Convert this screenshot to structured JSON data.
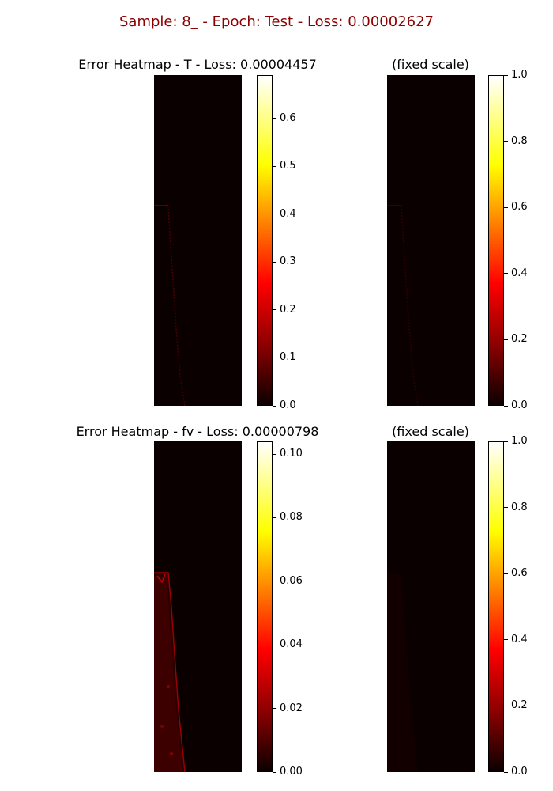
{
  "suptitle": "Sample: 8_ - Epoch: Test - Loss: 0.00002627",
  "panels": [
    {
      "title": "Error Heatmap - T - Loss: 0.00004457",
      "colorbar_ticks": [
        "0.0",
        "0.1",
        "0.2",
        "0.3",
        "0.4",
        "0.5",
        "0.6"
      ],
      "colorbar_max": 0.69
    },
    {
      "title": "(fixed scale)",
      "colorbar_ticks": [
        "0.0",
        "0.2",
        "0.4",
        "0.6",
        "0.8",
        "1.0"
      ],
      "colorbar_max": 1.0
    },
    {
      "title": "Error Heatmap - fv - Loss: 0.00000798",
      "colorbar_ticks": [
        "0.00",
        "0.02",
        "0.04",
        "0.06",
        "0.08",
        "0.10"
      ],
      "colorbar_max": 0.104
    },
    {
      "title": "(fixed scale)",
      "colorbar_ticks": [
        "0.0",
        "0.2",
        "0.4",
        "0.6",
        "0.8",
        "1.0"
      ],
      "colorbar_max": 1.0
    }
  ],
  "chart_data": {
    "type": "heatmap",
    "colormap": "hot",
    "title": "Sample: 8_ - Epoch: Test - Loss: 0.00002627",
    "subplots": [
      {
        "title": "Error Heatmap - T - Loss: 0.00004457",
        "vmin": 0.0,
        "vmax": 0.69,
        "ticks": [
          0.0,
          0.1,
          0.2,
          0.3,
          0.4,
          0.5,
          0.6
        ]
      },
      {
        "title": "(fixed scale)",
        "vmin": 0.0,
        "vmax": 1.0,
        "ticks": [
          0.0,
          0.2,
          0.4,
          0.6,
          0.8,
          1.0
        ]
      },
      {
        "title": "Error Heatmap - fv - Loss: 0.00000798",
        "vmin": 0.0,
        "vmax": 0.104,
        "ticks": [
          0.0,
          0.02,
          0.04,
          0.06,
          0.08,
          0.1
        ]
      },
      {
        "title": "(fixed scale)",
        "vmin": 0.0,
        "vmax": 1.0,
        "ticks": [
          0.0,
          0.2,
          0.4,
          0.6,
          0.8,
          1.0
        ]
      }
    ]
  }
}
